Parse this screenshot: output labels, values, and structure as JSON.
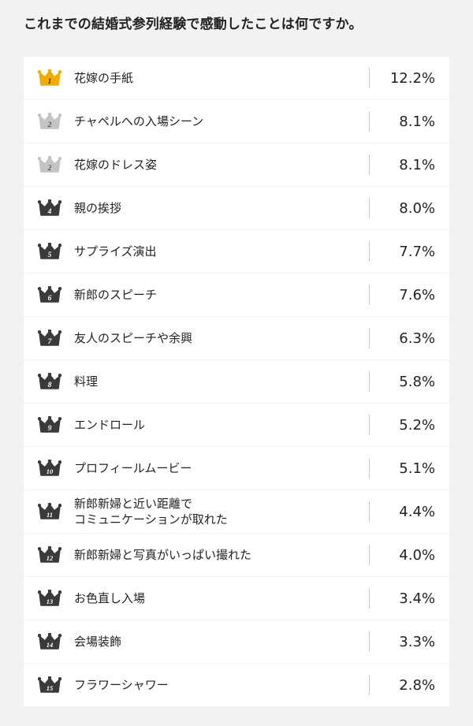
{
  "title": "これまでの結婚式参列経験で感動したことは何ですか。",
  "colors": {
    "gold": "#f0ad00",
    "silver": "#c4c4c4",
    "dark": "#3a3a3a",
    "background": "#f2f2f2",
    "row": "#ffffff"
  },
  "chart_data": {
    "type": "table",
    "title": "これまでの結婚式参列経験で感動したことは何ですか。",
    "rows": [
      {
        "rank": "1",
        "label": "花嫁の手紙",
        "value": "12.2%",
        "crown": "gold"
      },
      {
        "rank": "2",
        "label": "チャペルへの入場シーン",
        "value": "8.1%",
        "crown": "silver"
      },
      {
        "rank": "2",
        "label": "花嫁のドレス姿",
        "value": "8.1%",
        "crown": "silver"
      },
      {
        "rank": "4",
        "label": "親の挨拶",
        "value": "8.0%",
        "crown": "dark"
      },
      {
        "rank": "5",
        "label": "サプライズ演出",
        "value": "7.7%",
        "crown": "dark"
      },
      {
        "rank": "6",
        "label": "新郎のスピーチ",
        "value": "7.6%",
        "crown": "dark"
      },
      {
        "rank": "7",
        "label": "友人のスピーチや余興",
        "value": "6.3%",
        "crown": "dark"
      },
      {
        "rank": "8",
        "label": "料理",
        "value": "5.8%",
        "crown": "dark"
      },
      {
        "rank": "9",
        "label": "エンドロール",
        "value": "5.2%",
        "crown": "dark"
      },
      {
        "rank": "10",
        "label": "プロフィールムービー",
        "value": "5.1%",
        "crown": "dark"
      },
      {
        "rank": "11",
        "label": "新郎新婦と近い距離で\nコミュニケーションが取れた",
        "value": "4.4%",
        "crown": "dark"
      },
      {
        "rank": "12",
        "label": "新郎新婦と写真がいっぱい撮れた",
        "value": "4.0%",
        "crown": "dark"
      },
      {
        "rank": "13",
        "label": "お色直し入場",
        "value": "3.4%",
        "crown": "dark"
      },
      {
        "rank": "14",
        "label": "会場装飾",
        "value": "3.3%",
        "crown": "dark"
      },
      {
        "rank": "15",
        "label": "フラワーシャワー",
        "value": "2.8%",
        "crown": "dark"
      }
    ]
  }
}
